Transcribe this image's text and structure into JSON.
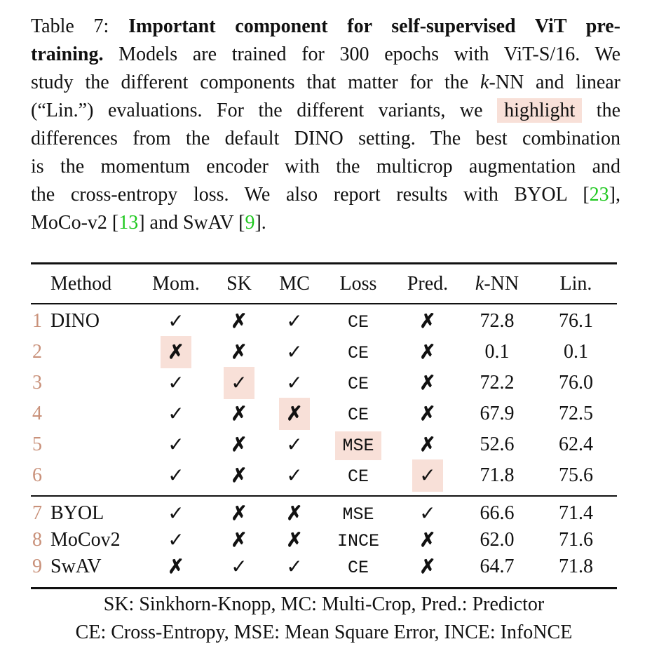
{
  "caption": {
    "label": "Table 7:",
    "title_part1": "Important component for self-supervised ViT pre-",
    "title_part2": "training.",
    "line2": "Models are trained for 300 epochs with ViT-S/16. We",
    "line3_a": "study the different components that matter for the",
    "line3_k": "k",
    "line3_b": "-NN and linear",
    "line4_a": "(“Lin.”) evaluations. For the different variants, we",
    "line4_hl": "highlight",
    "line4_b": "the",
    "line5": "differences from the default DINO setting. The best combination",
    "line6": "is the momentum encoder with the multicrop augmentation and",
    "line7_a": "the cross-entropy loss.  We also report results with BYOL [",
    "line7_cite": "23",
    "line7_b": "],",
    "line8_a": "MoCo-v2 [",
    "line8_cite1": "13",
    "line8_b": "] and SwAV [",
    "line8_cite2": "9",
    "line8_c": "].",
    "highlight_color": "#f8e0d8",
    "citation_color": "#1ec81e"
  },
  "table": {
    "headers": {
      "method": "Method",
      "mom": "Mom.",
      "sk": "SK",
      "mc": "MC",
      "loss": "Loss",
      "pred": "Pred.",
      "knn_k": "k",
      "knn_rest": "-NN",
      "lin": "Lin."
    },
    "group1": [
      {
        "num": "1",
        "method": "DINO",
        "mom": "✓",
        "sk": "✗",
        "mc": "✓",
        "loss": "CE",
        "pred": "✗",
        "knn": "72.8",
        "lin": "76.1",
        "highlight": ""
      },
      {
        "num": "2",
        "method": "",
        "mom": "✗",
        "sk": "✗",
        "mc": "✓",
        "loss": "CE",
        "pred": "✗",
        "knn": "0.1",
        "lin": "0.1",
        "highlight": "mom"
      },
      {
        "num": "3",
        "method": "",
        "mom": "✓",
        "sk": "✓",
        "mc": "✓",
        "loss": "CE",
        "pred": "✗",
        "knn": "72.2",
        "lin": "76.0",
        "highlight": "sk"
      },
      {
        "num": "4",
        "method": "",
        "mom": "✓",
        "sk": "✗",
        "mc": "✗",
        "loss": "CE",
        "pred": "✗",
        "knn": "67.9",
        "lin": "72.5",
        "highlight": "mc"
      },
      {
        "num": "5",
        "method": "",
        "mom": "✓",
        "sk": "✗",
        "mc": "✓",
        "loss": "MSE",
        "pred": "✗",
        "knn": "52.6",
        "lin": "62.4",
        "highlight": "loss"
      },
      {
        "num": "6",
        "method": "",
        "mom": "✓",
        "sk": "✗",
        "mc": "✓",
        "loss": "CE",
        "pred": "✓",
        "knn": "71.8",
        "lin": "75.6",
        "highlight": "pred"
      }
    ],
    "group2": [
      {
        "num": "7",
        "method": "BYOL",
        "mom": "✓",
        "sk": "✗",
        "mc": "✗",
        "loss": "MSE",
        "pred": "✓",
        "knn": "66.6",
        "lin": "71.4",
        "highlight": ""
      },
      {
        "num": "8",
        "method": "MoCov2",
        "mom": "✓",
        "sk": "✗",
        "mc": "✗",
        "loss": "INCE",
        "pred": "✗",
        "knn": "62.0",
        "lin": "71.6",
        "highlight": ""
      },
      {
        "num": "9",
        "method": "SwAV",
        "mom": "✗",
        "sk": "✓",
        "mc": "✓",
        "loss": "CE",
        "pred": "✗",
        "knn": "64.7",
        "lin": "71.8",
        "highlight": ""
      }
    ],
    "footnote1": "SK: Sinkhorn-Knopp, MC: Multi-Crop, Pred.: Predictor",
    "footnote2": "CE: Cross-Entropy, MSE: Mean Square Error, INCE: InfoNCE",
    "number_color": "#c9917a"
  }
}
